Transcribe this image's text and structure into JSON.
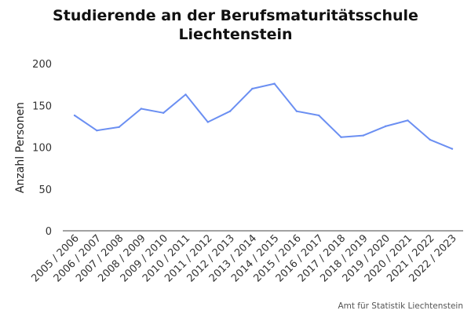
{
  "chart_data": {
    "type": "line",
    "title_line1": "Studierende an der Berufsmaturitätsschule",
    "title_line2": "Liechtenstein",
    "ylabel": "Anzahl Personen",
    "xlabel": "",
    "ylim": [
      0,
      200
    ],
    "yticks": [
      0,
      50,
      100,
      150,
      200
    ],
    "grid": false,
    "categories": [
      "2005 / 2006",
      "2006 / 2007",
      "2007 / 2008",
      "2008 / 2009",
      "2009 / 2010",
      "2010 / 2011",
      "2011 / 2012",
      "2012 / 2013",
      "2013 / 2014",
      "2014 / 2015",
      "2015 / 2016",
      "2016 / 2017",
      "2017 / 2018",
      "2018 / 2019",
      "2019 / 2020",
      "2020 / 2021",
      "2021 / 2022",
      "2022 / 2023"
    ],
    "series": [
      {
        "values": [
          138,
          120,
          124,
          146,
          141,
          163,
          130,
          143,
          170,
          176,
          143,
          138,
          112,
          114,
          125,
          132,
          109,
          98
        ],
        "color": "#6b8ff2"
      }
    ]
  },
  "source": "Amt für Statistik Liechtenstein"
}
